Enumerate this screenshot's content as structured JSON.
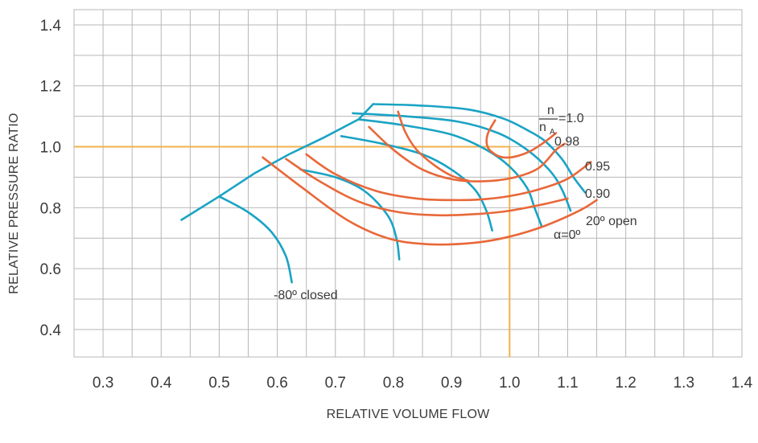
{
  "chart_data": {
    "type": "line",
    "title": "",
    "xlabel": "RELATIVE VOLUME FLOW",
    "ylabel": "RELATIVE PRESSURE RATIO",
    "xlim": [
      0.25,
      1.4
    ],
    "ylim": [
      0.31,
      1.45
    ],
    "x_ticks": [
      "0.3",
      "0.4",
      "0.5",
      "0.6",
      "0.7",
      "0.8",
      "0.9",
      "1.0",
      "1.1",
      "1.2",
      "1.3",
      "1.4"
    ],
    "y_ticks": [
      "0.4",
      "0.6",
      "0.8",
      "1.0",
      "1.2",
      "1.4"
    ],
    "grid": true,
    "colors": {
      "speed_lines": "#1aa3c4",
      "guide_vane_lines": "#e8683a",
      "design_point": "#f2b14c",
      "grid": "#b7b7b7",
      "text": "#3a3a3a"
    },
    "design_point": {
      "x": 1.0,
      "y": 1.0
    },
    "series": [
      {
        "group": "speed_line",
        "points": [
          [
            0.765,
            1.14
          ],
          [
            0.85,
            1.135
          ],
          [
            0.93,
            1.122
          ],
          [
            0.99,
            1.092
          ],
          [
            1.03,
            1.055
          ],
          [
            1.06,
            1.02
          ],
          [
            1.09,
            0.96
          ],
          [
            1.11,
            0.9
          ],
          [
            1.13,
            0.85
          ]
        ]
      },
      {
        "group": "speed_line",
        "points": [
          [
            0.73,
            1.11
          ],
          [
            0.82,
            1.1
          ],
          [
            0.91,
            1.083
          ],
          [
            0.98,
            1.045
          ],
          [
            1.03,
            0.99
          ],
          [
            1.07,
            0.92
          ],
          [
            1.09,
            0.86
          ],
          [
            1.105,
            0.79
          ]
        ]
      },
      {
        "group": "speed_line",
        "points": [
          [
            0.74,
            1.09
          ],
          [
            0.82,
            1.07
          ],
          [
            0.9,
            1.04
          ],
          [
            0.96,
            0.99
          ],
          [
            1.0,
            0.935
          ],
          [
            1.03,
            0.865
          ],
          [
            1.043,
            0.8
          ],
          [
            1.055,
            0.74
          ]
        ]
      },
      {
        "group": "speed_line",
        "points": [
          [
            0.71,
            1.035
          ],
          [
            0.78,
            1.01
          ],
          [
            0.85,
            0.975
          ],
          [
            0.9,
            0.925
          ],
          [
            0.94,
            0.86
          ],
          [
            0.96,
            0.79
          ],
          [
            0.97,
            0.725
          ]
        ]
      },
      {
        "group": "speed_line",
        "points": [
          [
            0.64,
            0.925
          ],
          [
            0.7,
            0.9
          ],
          [
            0.75,
            0.855
          ],
          [
            0.79,
            0.775
          ],
          [
            0.805,
            0.7
          ],
          [
            0.81,
            0.63
          ]
        ]
      },
      {
        "group": "speed_line",
        "points": [
          [
            0.5,
            0.837
          ],
          [
            0.55,
            0.785
          ],
          [
            0.59,
            0.72
          ],
          [
            0.615,
            0.64
          ],
          [
            0.625,
            0.555
          ]
        ]
      },
      {
        "group": "surge_line",
        "points": [
          [
            0.435,
            0.76
          ],
          [
            0.5,
            0.837
          ],
          [
            0.56,
            0.912
          ],
          [
            0.62,
            0.975
          ],
          [
            0.68,
            1.03
          ],
          [
            0.74,
            1.09
          ],
          [
            0.765,
            1.14
          ]
        ]
      },
      {
        "group": "guide_vane_line",
        "points": [
          [
            0.575,
            0.965
          ],
          [
            0.64,
            0.87
          ],
          [
            0.72,
            0.76
          ],
          [
            0.79,
            0.7
          ],
          [
            0.86,
            0.68
          ],
          [
            0.94,
            0.685
          ],
          [
            1.0,
            0.705
          ],
          [
            1.06,
            0.74
          ],
          [
            1.12,
            0.79
          ],
          [
            1.15,
            0.825
          ]
        ]
      },
      {
        "group": "guide_vane_line",
        "points": [
          [
            0.615,
            0.96
          ],
          [
            0.67,
            0.89
          ],
          [
            0.74,
            0.82
          ],
          [
            0.81,
            0.785
          ],
          [
            0.88,
            0.775
          ],
          [
            0.95,
            0.78
          ],
          [
            1.0,
            0.79
          ],
          [
            1.06,
            0.812
          ],
          [
            1.1,
            0.83
          ]
        ]
      },
      {
        "group": "guide_vane_line",
        "points": [
          [
            0.65,
            0.975
          ],
          [
            0.7,
            0.91
          ],
          [
            0.77,
            0.855
          ],
          [
            0.84,
            0.83
          ],
          [
            0.9,
            0.825
          ],
          [
            0.95,
            0.827
          ],
          [
            1.0,
            0.838
          ],
          [
            1.05,
            0.86
          ],
          [
            1.1,
            0.895
          ],
          [
            1.14,
            0.95
          ]
        ]
      },
      {
        "group": "guide_vane_line",
        "points": [
          [
            0.758,
            1.065
          ],
          [
            0.8,
            0.99
          ],
          [
            0.85,
            0.925
          ],
          [
            0.905,
            0.892
          ],
          [
            0.96,
            0.887
          ],
          [
            1.01,
            0.9
          ],
          [
            1.05,
            0.93
          ],
          [
            1.08,
            0.99
          ],
          [
            1.095,
            1.01
          ]
        ]
      },
      {
        "group": "guide_vane_line",
        "points": [
          [
            0.808,
            1.115
          ],
          [
            0.82,
            1.05
          ],
          [
            0.84,
            0.99
          ],
          [
            0.87,
            0.94
          ],
          [
            0.9,
            0.905
          ],
          [
            0.93,
            0.888
          ]
        ]
      },
      {
        "group": "guide_vane_line",
        "points": [
          [
            0.975,
            1.087
          ],
          [
            0.962,
            1.04
          ],
          [
            0.962,
            1.0
          ],
          [
            0.975,
            0.975
          ],
          [
            0.99,
            0.965
          ],
          [
            1.01,
            0.968
          ],
          [
            1.035,
            0.985
          ],
          [
            1.06,
            1.015
          ],
          [
            1.08,
            1.045
          ]
        ]
      }
    ],
    "annotations": {
      "speed_ratio_numerator": "n",
      "speed_ratio_denominator": "n",
      "speed_ratio_subscript": "A",
      "speed_ratio_value": "=1.0",
      "speed_098": "0.98",
      "speed_095": "0.95",
      "speed_090": "0.90",
      "vane_open": "20º open",
      "vane_zero": "α=0º",
      "vane_closed": "-80º closed"
    }
  }
}
